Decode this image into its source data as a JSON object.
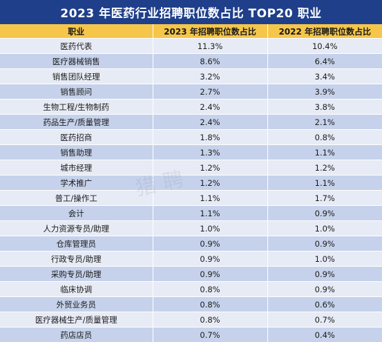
{
  "title": "2023 年医药行业招聘职位数占比 TOP20 职业",
  "watermark": "猎聘",
  "headers": [
    "职业",
    "2023 年招聘职位数占比",
    "2022 年招聘职位数占比"
  ],
  "rows": [
    [
      "医药代表",
      "11.3%",
      "10.4%"
    ],
    [
      "医疗器械销售",
      "8.6%",
      "6.4%"
    ],
    [
      "销售团队经理",
      "3.2%",
      "3.4%"
    ],
    [
      "销售顾问",
      "2.7%",
      "3.9%"
    ],
    [
      "生物工程/生物制药",
      "2.4%",
      "3.8%"
    ],
    [
      "药品生产/质量管理",
      "2.4%",
      "2.1%"
    ],
    [
      "医药招商",
      "1.8%",
      "0.8%"
    ],
    [
      "销售助理",
      "1.3%",
      "1.1%"
    ],
    [
      "城市经理",
      "1.2%",
      "1.2%"
    ],
    [
      "学术推广",
      "1.2%",
      "1.1%"
    ],
    [
      "普工/操作工",
      "1.1%",
      "1.7%"
    ],
    [
      "会计",
      "1.1%",
      "0.9%"
    ],
    [
      "人力资源专员/助理",
      "1.0%",
      "1.0%"
    ],
    [
      "仓库管理员",
      "0.9%",
      "0.9%"
    ],
    [
      "行政专员/助理",
      "0.9%",
      "1.0%"
    ],
    [
      "采购专员/助理",
      "0.9%",
      "0.9%"
    ],
    [
      "临床协调",
      "0.8%",
      "0.9%"
    ],
    [
      "外贸业务员",
      "0.8%",
      "0.6%"
    ],
    [
      "医疗器械生产/质量管理",
      "0.8%",
      "0.7%"
    ],
    [
      "药店店员",
      "0.7%",
      "0.4%"
    ]
  ]
}
